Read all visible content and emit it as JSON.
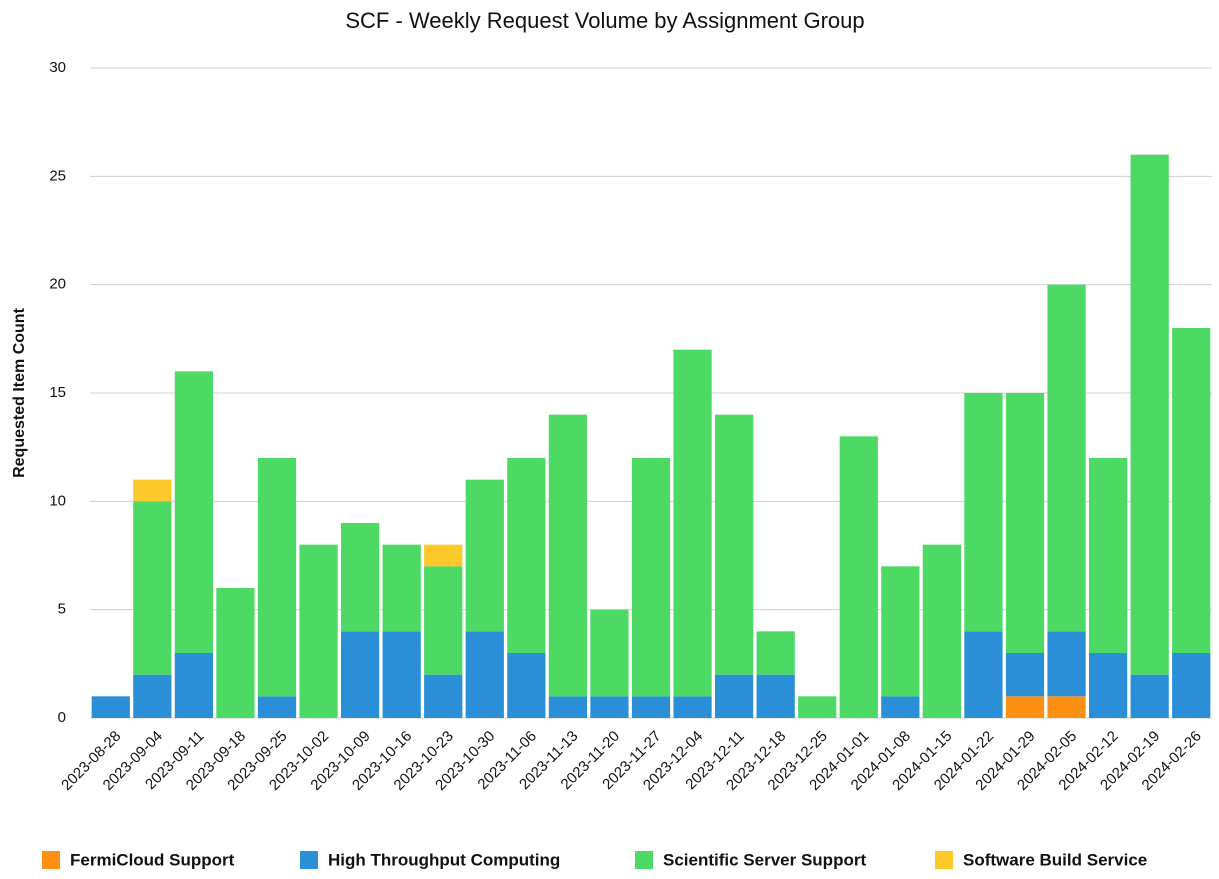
{
  "chart_data": {
    "type": "stacked_bar",
    "title": "SCF - Weekly Request Volume by Assignment Group",
    "y_label": "Requested Item Count",
    "categories": [
      "2023-08-28",
      "2023-09-04",
      "2023-09-11",
      "2023-09-18",
      "2023-09-25",
      "2023-10-02",
      "2023-10-09",
      "2023-10-16",
      "2023-10-23",
      "2023-10-30",
      "2023-11-06",
      "2023-11-13",
      "2023-11-20",
      "2023-11-27",
      "2023-12-04",
      "2023-12-11",
      "2023-12-18",
      "2023-12-25",
      "2024-01-01",
      "2024-01-08",
      "2024-01-15",
      "2024-01-22",
      "2024-01-29",
      "2024-02-05",
      "2024-02-12",
      "2024-02-19",
      "2024-02-26"
    ],
    "series": [
      {
        "name": "FermiCloud Support",
        "color": "#fb9013",
        "values": [
          0,
          0,
          0,
          0,
          0,
          0,
          0,
          0,
          0,
          0,
          0,
          0,
          0,
          0,
          0,
          0,
          0,
          0,
          0,
          0,
          0,
          0,
          1,
          1,
          0,
          0,
          0
        ]
      },
      {
        "name": "High Throughput Computing",
        "color": "#2a8fd6",
        "values": [
          1,
          2,
          3,
          0,
          1,
          0,
          4,
          4,
          2,
          4,
          3,
          1,
          1,
          1,
          1,
          2,
          2,
          0,
          0,
          1,
          0,
          4,
          2,
          3,
          3,
          2,
          3
        ]
      },
      {
        "name": "Scientific Server Support",
        "color": "#4cd964",
        "values": [
          0,
          8,
          13,
          6,
          11,
          8,
          5,
          4,
          5,
          7,
          9,
          13,
          4,
          11,
          16,
          12,
          2,
          1,
          13,
          6,
          8,
          11,
          12,
          16,
          9,
          24,
          15
        ]
      },
      {
        "name": "Software Build Service",
        "color": "#fdc829",
        "values": [
          0,
          1,
          0,
          0,
          0,
          0,
          0,
          0,
          1,
          0,
          0,
          0,
          0,
          0,
          0,
          0,
          0,
          0,
          0,
          0,
          0,
          0,
          0,
          0,
          0,
          0,
          0
        ]
      }
    ],
    "ylim": [
      0,
      30
    ],
    "yticks": [
      0,
      5,
      10,
      15,
      20,
      25,
      30
    ],
    "grid": true,
    "legend": "bottom"
  }
}
